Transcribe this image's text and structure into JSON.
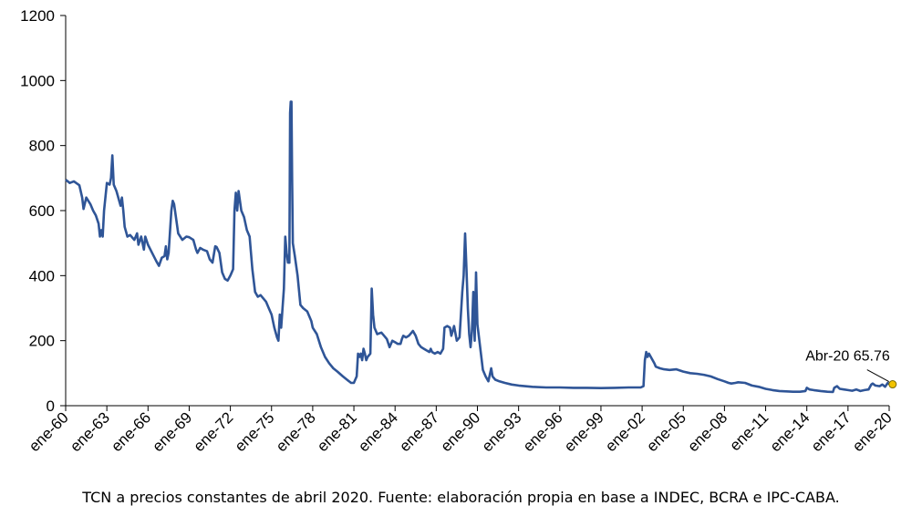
{
  "caption": "TCN a precios constantes de abril 2020. Fuente: elaboración propia en base a INDEC, BCRA e IPC-CABA.",
  "chart_data": {
    "type": "line",
    "title": "",
    "xlabel": "",
    "ylabel": "",
    "ylim": [
      0,
      1200
    ],
    "yticks": [
      0,
      200,
      400,
      600,
      800,
      1000,
      1200
    ],
    "xlim": [
      1960.0,
      2020.3
    ],
    "xticks": [
      {
        "year": 1960,
        "label": "ene-60"
      },
      {
        "year": 1963,
        "label": "ene-63"
      },
      {
        "year": 1966,
        "label": "ene-66"
      },
      {
        "year": 1969,
        "label": "ene-69"
      },
      {
        "year": 1972,
        "label": "ene-72"
      },
      {
        "year": 1975,
        "label": "ene-75"
      },
      {
        "year": 1978,
        "label": "ene-78"
      },
      {
        "year": 1981,
        "label": "ene-81"
      },
      {
        "year": 1984,
        "label": "ene-84"
      },
      {
        "year": 1987,
        "label": "ene-87"
      },
      {
        "year": 1990,
        "label": "ene-90"
      },
      {
        "year": 1993,
        "label": "ene-93"
      },
      {
        "year": 1996,
        "label": "ene-96"
      },
      {
        "year": 1999,
        "label": "ene-99"
      },
      {
        "year": 2002,
        "label": "ene-02"
      },
      {
        "year": 2005,
        "label": "ene-05"
      },
      {
        "year": 2008,
        "label": "ene-08"
      },
      {
        "year": 2011,
        "label": "ene-11"
      },
      {
        "year": 2014,
        "label": "ene-14"
      },
      {
        "year": 2017,
        "label": "ene-17"
      },
      {
        "year": 2020,
        "label": "ene-20"
      }
    ],
    "grid": false,
    "line_color": "#2f5597",
    "marker_color": "#f2c300",
    "annotation": {
      "label": "Abr-20 65.76",
      "x": 2020.25,
      "y": 65.76
    },
    "series": [
      {
        "points": [
          [
            1960.0,
            695
          ],
          [
            1960.3,
            685
          ],
          [
            1960.6,
            690
          ],
          [
            1961.0,
            678
          ],
          [
            1961.2,
            640
          ],
          [
            1961.3,
            605
          ],
          [
            1961.5,
            640
          ],
          [
            1961.8,
            620
          ],
          [
            1962.0,
            600
          ],
          [
            1962.2,
            585
          ],
          [
            1962.4,
            560
          ],
          [
            1962.5,
            520
          ],
          [
            1962.6,
            540
          ],
          [
            1962.7,
            520
          ],
          [
            1962.8,
            600
          ],
          [
            1963.0,
            685
          ],
          [
            1963.2,
            680
          ],
          [
            1963.3,
            700
          ],
          [
            1963.4,
            770
          ],
          [
            1963.5,
            680
          ],
          [
            1963.7,
            660
          ],
          [
            1963.9,
            630
          ],
          [
            1964.0,
            615
          ],
          [
            1964.1,
            640
          ],
          [
            1964.2,
            600
          ],
          [
            1964.3,
            550
          ],
          [
            1964.5,
            520
          ],
          [
            1964.7,
            525
          ],
          [
            1965.0,
            510
          ],
          [
            1965.2,
            530
          ],
          [
            1965.3,
            495
          ],
          [
            1965.5,
            520
          ],
          [
            1965.7,
            480
          ],
          [
            1965.8,
            520
          ],
          [
            1966.0,
            495
          ],
          [
            1966.3,
            470
          ],
          [
            1966.6,
            445
          ],
          [
            1966.8,
            430
          ],
          [
            1967.0,
            455
          ],
          [
            1967.2,
            460
          ],
          [
            1967.3,
            490
          ],
          [
            1967.4,
            450
          ],
          [
            1967.5,
            470
          ],
          [
            1967.7,
            600
          ],
          [
            1967.8,
            630
          ],
          [
            1967.9,
            620
          ],
          [
            1968.0,
            590
          ],
          [
            1968.2,
            530
          ],
          [
            1968.5,
            510
          ],
          [
            1968.8,
            520
          ],
          [
            1969.0,
            518
          ],
          [
            1969.3,
            510
          ],
          [
            1969.5,
            480
          ],
          [
            1969.6,
            470
          ],
          [
            1969.8,
            485
          ],
          [
            1970.0,
            480
          ],
          [
            1970.3,
            475
          ],
          [
            1970.5,
            450
          ],
          [
            1970.7,
            440
          ],
          [
            1970.9,
            490
          ],
          [
            1971.0,
            488
          ],
          [
            1971.2,
            470
          ],
          [
            1971.4,
            410
          ],
          [
            1971.6,
            390
          ],
          [
            1971.8,
            385
          ],
          [
            1972.0,
            400
          ],
          [
            1972.2,
            420
          ],
          [
            1972.3,
            600
          ],
          [
            1972.4,
            655
          ],
          [
            1972.5,
            600
          ],
          [
            1972.6,
            660
          ],
          [
            1972.7,
            630
          ],
          [
            1972.8,
            600
          ],
          [
            1973.0,
            580
          ],
          [
            1973.2,
            540
          ],
          [
            1973.4,
            520
          ],
          [
            1973.6,
            420
          ],
          [
            1973.8,
            350
          ],
          [
            1974.0,
            335
          ],
          [
            1974.2,
            340
          ],
          [
            1974.4,
            330
          ],
          [
            1974.6,
            320
          ],
          [
            1974.8,
            300
          ],
          [
            1975.0,
            280
          ],
          [
            1975.2,
            240
          ],
          [
            1975.4,
            210
          ],
          [
            1975.5,
            200
          ],
          [
            1975.6,
            280
          ],
          [
            1975.7,
            240
          ],
          [
            1975.8,
            300
          ],
          [
            1975.9,
            360
          ],
          [
            1976.0,
            520
          ],
          [
            1976.1,
            470
          ],
          [
            1976.2,
            440
          ],
          [
            1976.3,
            440
          ],
          [
            1976.35,
            900
          ],
          [
            1976.4,
            935
          ],
          [
            1976.45,
            935
          ],
          [
            1976.5,
            700
          ],
          [
            1976.55,
            500
          ],
          [
            1976.7,
            460
          ],
          [
            1976.9,
            400
          ],
          [
            1977.1,
            310
          ],
          [
            1977.3,
            300
          ],
          [
            1977.6,
            290
          ],
          [
            1977.9,
            260
          ],
          [
            1978.0,
            240
          ],
          [
            1978.3,
            220
          ],
          [
            1978.6,
            180
          ],
          [
            1978.9,
            150
          ],
          [
            1979.2,
            130
          ],
          [
            1979.5,
            115
          ],
          [
            1979.8,
            105
          ],
          [
            1980.2,
            90
          ],
          [
            1980.5,
            80
          ],
          [
            1980.8,
            70
          ],
          [
            1981.0,
            70
          ],
          [
            1981.2,
            90
          ],
          [
            1981.3,
            160
          ],
          [
            1981.4,
            150
          ],
          [
            1981.5,
            160
          ],
          [
            1981.6,
            140
          ],
          [
            1981.7,
            175
          ],
          [
            1981.8,
            160
          ],
          [
            1981.9,
            140
          ],
          [
            1982.0,
            150
          ],
          [
            1982.2,
            160
          ],
          [
            1982.3,
            360
          ],
          [
            1982.4,
            280
          ],
          [
            1982.5,
            240
          ],
          [
            1982.7,
            220
          ],
          [
            1983.0,
            225
          ],
          [
            1983.2,
            215
          ],
          [
            1983.4,
            205
          ],
          [
            1983.6,
            180
          ],
          [
            1983.8,
            200
          ],
          [
            1984.0,
            195
          ],
          [
            1984.2,
            190
          ],
          [
            1984.4,
            190
          ],
          [
            1984.5,
            205
          ],
          [
            1984.6,
            215
          ],
          [
            1984.8,
            210
          ],
          [
            1985.0,
            215
          ],
          [
            1985.2,
            225
          ],
          [
            1985.3,
            230
          ],
          [
            1985.5,
            215
          ],
          [
            1985.7,
            190
          ],
          [
            1985.9,
            180
          ],
          [
            1986.1,
            175
          ],
          [
            1986.3,
            170
          ],
          [
            1986.5,
            165
          ],
          [
            1986.6,
            175
          ],
          [
            1986.7,
            165
          ],
          [
            1986.9,
            160
          ],
          [
            1987.1,
            165
          ],
          [
            1987.3,
            160
          ],
          [
            1987.5,
            175
          ],
          [
            1987.6,
            240
          ],
          [
            1987.8,
            245
          ],
          [
            1988.0,
            240
          ],
          [
            1988.1,
            215
          ],
          [
            1988.3,
            245
          ],
          [
            1988.5,
            200
          ],
          [
            1988.7,
            210
          ],
          [
            1988.9,
            350
          ],
          [
            1989.0,
            400
          ],
          [
            1989.1,
            530
          ],
          [
            1989.2,
            420
          ],
          [
            1989.3,
            300
          ],
          [
            1989.4,
            220
          ],
          [
            1989.5,
            180
          ],
          [
            1989.6,
            230
          ],
          [
            1989.7,
            350
          ],
          [
            1989.8,
            200
          ],
          [
            1989.9,
            410
          ],
          [
            1990.0,
            250
          ],
          [
            1990.2,
            180
          ],
          [
            1990.4,
            110
          ],
          [
            1990.6,
            90
          ],
          [
            1990.8,
            75
          ],
          [
            1991.0,
            115
          ],
          [
            1991.1,
            90
          ],
          [
            1991.3,
            80
          ],
          [
            1991.6,
            75
          ],
          [
            1992.0,
            70
          ],
          [
            1992.5,
            65
          ],
          [
            1993.0,
            62
          ],
          [
            1994.0,
            58
          ],
          [
            1995.0,
            56
          ],
          [
            1996.0,
            56
          ],
          [
            1997.0,
            55
          ],
          [
            1998.0,
            55
          ],
          [
            1999.0,
            54
          ],
          [
            2000.0,
            55
          ],
          [
            2001.0,
            56
          ],
          [
            2001.9,
            56
          ],
          [
            2002.1,
            60
          ],
          [
            2002.2,
            140
          ],
          [
            2002.3,
            165
          ],
          [
            2002.4,
            150
          ],
          [
            2002.5,
            160
          ],
          [
            2002.7,
            145
          ],
          [
            2002.9,
            130
          ],
          [
            2003.0,
            120
          ],
          [
            2003.3,
            115
          ],
          [
            2003.6,
            112
          ],
          [
            2004.0,
            110
          ],
          [
            2004.5,
            112
          ],
          [
            2005.0,
            105
          ],
          [
            2005.5,
            100
          ],
          [
            2006.0,
            98
          ],
          [
            2006.5,
            95
          ],
          [
            2007.0,
            90
          ],
          [
            2007.5,
            82
          ],
          [
            2008.0,
            75
          ],
          [
            2008.3,
            70
          ],
          [
            2008.5,
            68
          ],
          [
            2008.8,
            70
          ],
          [
            2009.0,
            72
          ],
          [
            2009.5,
            70
          ],
          [
            2010.0,
            62
          ],
          [
            2010.5,
            58
          ],
          [
            2011.0,
            52
          ],
          [
            2011.5,
            48
          ],
          [
            2012.0,
            45
          ],
          [
            2012.5,
            44
          ],
          [
            2013.0,
            43
          ],
          [
            2013.5,
            43
          ],
          [
            2013.9,
            45
          ],
          [
            2014.0,
            55
          ],
          [
            2014.2,
            50
          ],
          [
            2014.5,
            48
          ],
          [
            2015.0,
            45
          ],
          [
            2015.5,
            43
          ],
          [
            2015.9,
            42
          ],
          [
            2016.0,
            55
          ],
          [
            2016.2,
            60
          ],
          [
            2016.4,
            52
          ],
          [
            2016.7,
            50
          ],
          [
            2017.0,
            48
          ],
          [
            2017.3,
            46
          ],
          [
            2017.6,
            50
          ],
          [
            2017.9,
            45
          ],
          [
            2018.2,
            48
          ],
          [
            2018.5,
            50
          ],
          [
            2018.7,
            65
          ],
          [
            2018.8,
            68
          ],
          [
            2019.0,
            62
          ],
          [
            2019.3,
            60
          ],
          [
            2019.5,
            65
          ],
          [
            2019.7,
            58
          ],
          [
            2019.9,
            70
          ],
          [
            2020.1,
            64
          ],
          [
            2020.25,
            65.76
          ]
        ]
      }
    ]
  }
}
